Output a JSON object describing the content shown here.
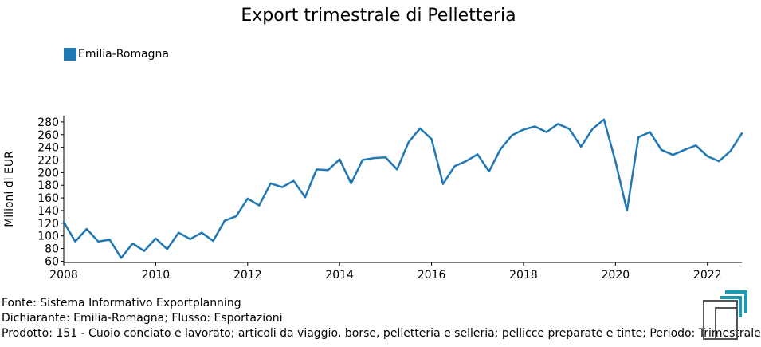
{
  "chart_data": {
    "type": "line",
    "title": "Export trimestrale di Pelletteria",
    "ylabel": "Milioni di EUR",
    "xlabel": "",
    "xlim": [
      2008,
      2022.75
    ],
    "ylim": [
      58,
      290
    ],
    "y_ticks": [
      60,
      80,
      100,
      120,
      140,
      160,
      180,
      200,
      220,
      240,
      260,
      280
    ],
    "x_ticks": [
      2008,
      2010,
      2012,
      2014,
      2016,
      2018,
      2020,
      2022
    ],
    "legend_position": "top-left",
    "grid": false,
    "series": [
      {
        "name": "Emilia-Romagna",
        "color": "#1f77b4",
        "x": [
          2008.0,
          2008.25,
          2008.5,
          2008.75,
          2009.0,
          2009.25,
          2009.5,
          2009.75,
          2010.0,
          2010.25,
          2010.5,
          2010.75,
          2011.0,
          2011.25,
          2011.5,
          2011.75,
          2012.0,
          2012.25,
          2012.5,
          2012.75,
          2013.0,
          2013.25,
          2013.5,
          2013.75,
          2014.0,
          2014.25,
          2014.5,
          2014.75,
          2015.0,
          2015.25,
          2015.5,
          2015.75,
          2016.0,
          2016.25,
          2016.5,
          2016.75,
          2017.0,
          2017.25,
          2017.5,
          2017.75,
          2018.0,
          2018.25,
          2018.5,
          2018.75,
          2019.0,
          2019.25,
          2019.5,
          2019.75,
          2020.0,
          2020.25,
          2020.5,
          2020.75,
          2021.0,
          2021.25,
          2021.5,
          2021.75,
          2022.0,
          2022.25,
          2022.5,
          2022.75
        ],
        "values": [
          122,
          91,
          111,
          91,
          94,
          65,
          88,
          76,
          96,
          79,
          105,
          95,
          105,
          92,
          124,
          131,
          159,
          148,
          183,
          177,
          187,
          161,
          205,
          204,
          221,
          183,
          220,
          223,
          224,
          205,
          248,
          270,
          253,
          182,
          210,
          218,
          229,
          202,
          237,
          259,
          268,
          273,
          264,
          277,
          269,
          241,
          269,
          284,
          218,
          140,
          256,
          264,
          236,
          228,
          236,
          243,
          226,
          218,
          234,
          262
        ]
      }
    ]
  },
  "legend": {
    "label": "Emilia-Romagna",
    "color": "#1f77b4"
  },
  "footer": {
    "line1": "Fonte: Sistema Informativo Exportplanning",
    "line2": "Dichiarante: Emilia-Romagna; Flusso: Esportazioni",
    "line3": "Prodotto: 151 - Cuoio conciato e lavorato; articoli da viaggio, borse, pelletteria e selleria; pellicce preparate e tinte; Periodo: Trimestrale"
  }
}
